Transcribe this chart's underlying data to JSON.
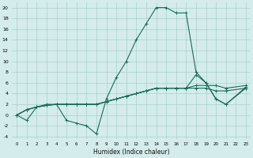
{
  "xlabel": "Humidex (Indice chaleur)",
  "bg_color": "#d4ecec",
  "grid_color": "#aacece",
  "line_color": "#1a6b5a",
  "xlim": [
    -0.5,
    23.5
  ],
  "ylim": [
    -4.5,
    21.0
  ],
  "xticks": [
    0,
    1,
    2,
    3,
    4,
    5,
    6,
    7,
    8,
    9,
    10,
    11,
    12,
    13,
    14,
    15,
    16,
    17,
    18,
    19,
    20,
    21,
    22,
    23
  ],
  "yticks": [
    -4,
    -2,
    0,
    2,
    4,
    6,
    8,
    10,
    12,
    14,
    16,
    18,
    20
  ],
  "main_x": [
    0,
    1,
    2,
    3,
    4,
    5,
    6,
    7,
    8,
    9,
    10,
    11,
    12,
    13,
    14,
    15,
    16,
    17,
    18,
    19,
    20,
    21,
    23
  ],
  "main_y": [
    0,
    -1,
    1.5,
    2,
    2,
    -1,
    -1.5,
    -2,
    -3.5,
    3,
    7,
    10,
    14,
    17,
    20,
    20,
    19,
    19,
    8,
    6,
    3,
    2,
    5
  ],
  "flat1_x": [
    0,
    1,
    2,
    3,
    4,
    5,
    6,
    7,
    8,
    9,
    10,
    11,
    12,
    13,
    14,
    15,
    16,
    17,
    18,
    19,
    20,
    21,
    23
  ],
  "flat1_y": [
    0,
    1,
    1.5,
    1.8,
    2,
    2,
    2,
    2,
    2,
    2.5,
    3,
    3.5,
    4,
    4.5,
    5,
    5,
    5,
    5,
    5,
    5,
    4.5,
    4.5,
    5
  ],
  "flat2_x": [
    0,
    1,
    2,
    3,
    4,
    5,
    6,
    7,
    8,
    9,
    10,
    11,
    12,
    13,
    14,
    15,
    16,
    17,
    18,
    19,
    20,
    21,
    23
  ],
  "flat2_y": [
    0,
    1,
    1.5,
    1.8,
    2,
    2,
    2,
    2,
    2,
    2.5,
    3,
    3.5,
    4,
    4.5,
    5,
    5,
    5,
    5,
    5.5,
    5.5,
    5.5,
    5,
    5.5
  ],
  "flat3_x": [
    0,
    1,
    2,
    3,
    4,
    5,
    6,
    7,
    8,
    9,
    10,
    11,
    12,
    13,
    14,
    15,
    16,
    17,
    18,
    19,
    20,
    21,
    23
  ],
  "flat3_y": [
    0,
    1,
    1.5,
    1.8,
    2,
    2,
    2,
    2,
    2,
    2.5,
    3,
    3.5,
    4,
    4.5,
    5,
    5,
    5,
    5,
    7.5,
    6,
    3,
    2,
    5.2
  ]
}
